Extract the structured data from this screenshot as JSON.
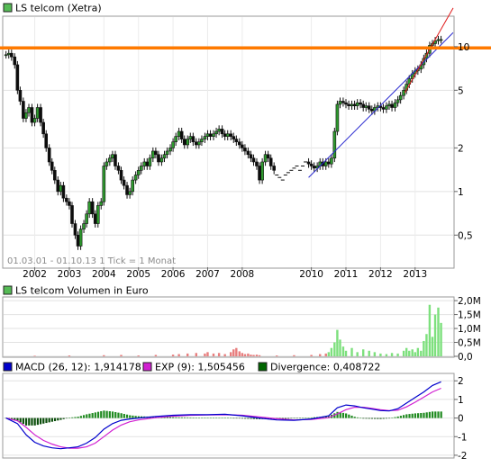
{
  "chart_data": [
    {
      "type": "line",
      "panel": "price",
      "legend": "LS telcom (Xetra)",
      "info_text": "01.03.01 - 01.10.13   1 Tick = 1 Monat",
      "y_scale": "log",
      "ylim": [
        0.3,
        16
      ],
      "y_ticks": [
        {
          "label": "0,5",
          "v": 0.5
        },
        {
          "label": "1",
          "v": 1
        },
        {
          "label": "2",
          "v": 2
        },
        {
          "label": "5",
          "v": 5
        },
        {
          "label": "10",
          "v": 10
        }
      ],
      "x_year_labels": [
        {
          "label": "2002",
          "t": 2002.0
        },
        {
          "label": "2003",
          "t": 2003.0
        },
        {
          "label": "2004",
          "t": 2004.0
        },
        {
          "label": "2005",
          "t": 2005.0
        },
        {
          "label": "2006",
          "t": 2006.0
        },
        {
          "label": "2007",
          "t": 2007.0
        },
        {
          "label": "2008",
          "t": 2008.0
        },
        {
          "label": "2010",
          "t": 2010.0
        },
        {
          "label": "2011",
          "t": 2011.0
        },
        {
          "label": "2012",
          "t": 2012.0
        },
        {
          "label": "2013",
          "t": 2013.0
        }
      ],
      "x_range": [
        2001.1,
        2014.1
      ],
      "price_points": [
        [
          2001.17,
          8.8
        ],
        [
          2001.25,
          9.0
        ],
        [
          2001.33,
          8.5
        ],
        [
          2001.42,
          7.5
        ],
        [
          2001.5,
          5.0
        ],
        [
          2001.58,
          4.2
        ],
        [
          2001.67,
          3.2
        ],
        [
          2001.75,
          3.5
        ],
        [
          2001.83,
          3.8
        ],
        [
          2001.92,
          3.0
        ],
        [
          2002.0,
          3.2
        ],
        [
          2002.08,
          3.8
        ],
        [
          2002.17,
          3.0
        ],
        [
          2002.25,
          2.5
        ],
        [
          2002.33,
          2.0
        ],
        [
          2002.42,
          1.6
        ],
        [
          2002.5,
          1.4
        ],
        [
          2002.58,
          1.2
        ],
        [
          2002.67,
          1.0
        ],
        [
          2002.75,
          1.1
        ],
        [
          2002.83,
          0.9
        ],
        [
          2002.92,
          0.85
        ],
        [
          2003.0,
          0.8
        ],
        [
          2003.08,
          0.6
        ],
        [
          2003.17,
          0.5
        ],
        [
          2003.25,
          0.42
        ],
        [
          2003.33,
          0.55
        ],
        [
          2003.42,
          0.6
        ],
        [
          2003.5,
          0.7
        ],
        [
          2003.58,
          0.85
        ],
        [
          2003.67,
          0.7
        ],
        [
          2003.75,
          0.6
        ],
        [
          2003.83,
          0.8
        ],
        [
          2003.92,
          0.85
        ],
        [
          2004.0,
          1.5
        ],
        [
          2004.08,
          1.6
        ],
        [
          2004.17,
          1.7
        ],
        [
          2004.25,
          1.8
        ],
        [
          2004.33,
          1.5
        ],
        [
          2004.42,
          1.4
        ],
        [
          2004.5,
          1.2
        ],
        [
          2004.58,
          1.1
        ],
        [
          2004.67,
          0.95
        ],
        [
          2004.75,
          1.0
        ],
        [
          2004.83,
          1.2
        ],
        [
          2004.92,
          1.3
        ],
        [
          2005.0,
          1.4
        ],
        [
          2005.08,
          1.5
        ],
        [
          2005.17,
          1.6
        ],
        [
          2005.25,
          1.5
        ],
        [
          2005.33,
          1.7
        ],
        [
          2005.42,
          1.9
        ],
        [
          2005.5,
          1.8
        ],
        [
          2005.58,
          1.6
        ],
        [
          2005.67,
          1.7
        ],
        [
          2005.75,
          1.8
        ],
        [
          2005.83,
          1.9
        ],
        [
          2005.92,
          2.0
        ],
        [
          2006.0,
          2.2
        ],
        [
          2006.08,
          2.4
        ],
        [
          2006.17,
          2.6
        ],
        [
          2006.25,
          2.3
        ],
        [
          2006.33,
          2.1
        ],
        [
          2006.42,
          2.3
        ],
        [
          2006.5,
          2.4
        ],
        [
          2006.58,
          2.2
        ],
        [
          2006.67,
          2.1
        ],
        [
          2006.75,
          2.2
        ],
        [
          2006.83,
          2.3
        ],
        [
          2006.92,
          2.4
        ],
        [
          2007.0,
          2.5
        ],
        [
          2007.08,
          2.4
        ],
        [
          2007.17,
          2.5
        ],
        [
          2007.25,
          2.6
        ],
        [
          2007.33,
          2.7
        ],
        [
          2007.42,
          2.5
        ],
        [
          2007.5,
          2.4
        ],
        [
          2007.58,
          2.5
        ],
        [
          2007.67,
          2.4
        ],
        [
          2007.75,
          2.3
        ],
        [
          2007.83,
          2.2
        ],
        [
          2007.92,
          2.1
        ],
        [
          2008.0,
          2.0
        ],
        [
          2008.08,
          1.9
        ],
        [
          2008.17,
          1.8
        ],
        [
          2008.25,
          1.7
        ],
        [
          2008.33,
          1.6
        ],
        [
          2008.42,
          1.5
        ],
        [
          2008.5,
          1.2
        ],
        [
          2008.58,
          1.6
        ],
        [
          2008.67,
          1.8
        ],
        [
          2008.75,
          1.7
        ],
        [
          2008.83,
          1.5
        ],
        [
          2008.92,
          1.4
        ],
        [
          2009.0,
          1.3
        ],
        [
          2009.08,
          1.25
        ],
        [
          2009.17,
          1.2
        ],
        [
          2009.25,
          1.3
        ],
        [
          2009.33,
          1.35
        ],
        [
          2009.42,
          1.4
        ],
        [
          2009.5,
          1.45
        ],
        [
          2009.58,
          1.5
        ],
        [
          2009.67,
          1.4
        ],
        [
          2009.75,
          1.5
        ],
        [
          2009.83,
          1.6
        ],
        [
          2009.92,
          1.55
        ],
        [
          2010.0,
          1.5
        ],
        [
          2010.08,
          1.45
        ],
        [
          2010.17,
          1.5
        ],
        [
          2010.25,
          1.6
        ],
        [
          2010.33,
          1.5
        ],
        [
          2010.42,
          1.6
        ],
        [
          2010.5,
          1.55
        ],
        [
          2010.58,
          1.7
        ],
        [
          2010.67,
          2.6
        ],
        [
          2010.75,
          4.0
        ],
        [
          2010.83,
          4.2
        ],
        [
          2010.92,
          4.1
        ],
        [
          2011.0,
          4.0
        ],
        [
          2011.08,
          3.9
        ],
        [
          2011.17,
          4.0
        ],
        [
          2011.25,
          3.9
        ],
        [
          2011.33,
          4.1
        ],
        [
          2011.42,
          4.0
        ],
        [
          2011.5,
          3.8
        ],
        [
          2011.58,
          3.9
        ],
        [
          2011.67,
          3.7
        ],
        [
          2011.75,
          3.6
        ],
        [
          2011.83,
          3.8
        ],
        [
          2011.92,
          3.9
        ],
        [
          2012.0,
          3.8
        ],
        [
          2012.08,
          3.7
        ],
        [
          2012.17,
          3.9
        ],
        [
          2012.25,
          4.0
        ],
        [
          2012.33,
          3.8
        ],
        [
          2012.42,
          4.1
        ],
        [
          2012.5,
          4.3
        ],
        [
          2012.58,
          4.6
        ],
        [
          2012.67,
          5.0
        ],
        [
          2012.75,
          5.5
        ],
        [
          2012.83,
          6.0
        ],
        [
          2012.92,
          6.5
        ],
        [
          2013.0,
          6.8
        ],
        [
          2013.08,
          7.0
        ],
        [
          2013.17,
          7.5
        ],
        [
          2013.25,
          8.3
        ],
        [
          2013.33,
          9.0
        ],
        [
          2013.42,
          10.2
        ],
        [
          2013.5,
          10.5
        ],
        [
          2013.58,
          11.0
        ],
        [
          2013.67,
          11.2
        ],
        [
          2013.75,
          11.2
        ]
      ],
      "horizontal_line": {
        "value": 9.8,
        "color": "#ff7a00"
      },
      "red_trend": [
        [
          2012.7,
          4.8
        ],
        [
          2014.1,
          18.5
        ]
      ],
      "blue_trend": [
        [
          2009.92,
          1.25
        ],
        [
          2014.1,
          12.5
        ]
      ],
      "colors": {
        "up": "#2e9a2e",
        "down": "#0d0d0d",
        "legend_box": "#55bb55"
      }
    },
    {
      "type": "bar",
      "panel": "volume",
      "legend": "LS telcom Volumen in Euro",
      "ylim": [
        0,
        2.1
      ],
      "y_ticks": [
        {
          "label": "0,0",
          "v": 0
        },
        {
          "label": "0,5M",
          "v": 0.5
        },
        {
          "label": "1,0M",
          "v": 1.0
        },
        {
          "label": "1,5M",
          "v": 1.5
        },
        {
          "label": "2,0M",
          "v": 2.0
        }
      ],
      "volume_points": [
        [
          2002.0,
          0.02
        ],
        [
          2003.0,
          0.03
        ],
        [
          2004.0,
          0.04
        ],
        [
          2004.5,
          0.05
        ],
        [
          2005.0,
          0.03
        ],
        [
          2005.5,
          0.05
        ],
        [
          2006.0,
          0.06
        ],
        [
          2006.17,
          0.08
        ],
        [
          2006.42,
          0.1
        ],
        [
          2006.67,
          0.12
        ],
        [
          2006.92,
          0.1
        ],
        [
          2007.0,
          0.15
        ],
        [
          2007.17,
          0.1
        ],
        [
          2007.33,
          0.12
        ],
        [
          2007.5,
          0.08
        ],
        [
          2007.67,
          0.15
        ],
        [
          2007.75,
          0.25
        ],
        [
          2007.83,
          0.3
        ],
        [
          2007.92,
          0.18
        ],
        [
          2008.0,
          0.12
        ],
        [
          2008.08,
          0.08
        ],
        [
          2008.17,
          0.1
        ],
        [
          2008.25,
          0.06
        ],
        [
          2008.33,
          0.05
        ],
        [
          2008.42,
          0.06
        ],
        [
          2008.5,
          0.04
        ],
        [
          2009.0,
          0.03
        ],
        [
          2009.5,
          0.04
        ],
        [
          2010.0,
          0.05
        ],
        [
          2010.25,
          0.08
        ],
        [
          2010.42,
          0.1
        ],
        [
          2010.5,
          0.15
        ],
        [
          2010.58,
          0.3
        ],
        [
          2010.67,
          0.5
        ],
        [
          2010.75,
          0.95
        ],
        [
          2010.83,
          0.6
        ],
        [
          2010.92,
          0.35
        ],
        [
          2011.0,
          0.2
        ],
        [
          2011.17,
          0.3
        ],
        [
          2011.33,
          0.15
        ],
        [
          2011.5,
          0.25
        ],
        [
          2011.67,
          0.2
        ],
        [
          2011.83,
          0.15
        ],
        [
          2012.0,
          0.1
        ],
        [
          2012.17,
          0.08
        ],
        [
          2012.33,
          0.12
        ],
        [
          2012.5,
          0.1
        ],
        [
          2012.67,
          0.2
        ],
        [
          2012.75,
          0.3
        ],
        [
          2012.83,
          0.2
        ],
        [
          2012.92,
          0.25
        ],
        [
          2013.0,
          0.15
        ],
        [
          2013.08,
          0.3
        ],
        [
          2013.17,
          0.2
        ],
        [
          2013.25,
          0.55
        ],
        [
          2013.33,
          0.8
        ],
        [
          2013.42,
          1.85
        ],
        [
          2013.5,
          0.7
        ],
        [
          2013.58,
          1.5
        ],
        [
          2013.67,
          1.75
        ],
        [
          2013.75,
          1.2
        ]
      ],
      "colors": {
        "up": "#7de07d",
        "down": "#e87e7e",
        "legend_box": "#55bb55"
      }
    },
    {
      "type": "line",
      "panel": "macd",
      "legend": [
        {
          "label": "MACD (26, 12): 1,914178",
          "color": "#0000cc"
        },
        {
          "label": "EXP (9): 1,505456",
          "color": "#d11fd1"
        },
        {
          "label": "Divergence: 0,408722",
          "color": "#006600"
        }
      ],
      "ylim": [
        -2.1,
        2.35
      ],
      "y_ticks": [
        {
          "label": "2",
          "v": 2
        },
        {
          "label": "1",
          "v": 1
        },
        {
          "label": "0",
          "v": 0
        },
        {
          "label": "-1",
          "v": -1
        },
        {
          "label": "-2",
          "v": -2
        }
      ],
      "macd": [
        [
          2001.17,
          0.0
        ],
        [
          2001.5,
          -0.3
        ],
        [
          2001.75,
          -0.9
        ],
        [
          2002.0,
          -1.3
        ],
        [
          2002.25,
          -1.5
        ],
        [
          2002.5,
          -1.6
        ],
        [
          2002.75,
          -1.65
        ],
        [
          2003.0,
          -1.6
        ],
        [
          2003.25,
          -1.55
        ],
        [
          2003.5,
          -1.35
        ],
        [
          2003.75,
          -1.05
        ],
        [
          2004.0,
          -0.6
        ],
        [
          2004.25,
          -0.3
        ],
        [
          2004.5,
          -0.12
        ],
        [
          2004.75,
          -0.05
        ],
        [
          2005.0,
          0.0
        ],
        [
          2005.5,
          0.08
        ],
        [
          2006.0,
          0.15
        ],
        [
          2006.5,
          0.18
        ],
        [
          2007.0,
          0.18
        ],
        [
          2007.5,
          0.2
        ],
        [
          2008.0,
          0.12
        ],
        [
          2008.5,
          0.0
        ],
        [
          2009.0,
          -0.1
        ],
        [
          2009.5,
          -0.12
        ],
        [
          2010.0,
          -0.05
        ],
        [
          2010.5,
          0.12
        ],
        [
          2010.75,
          0.55
        ],
        [
          2011.0,
          0.7
        ],
        [
          2011.25,
          0.65
        ],
        [
          2011.5,
          0.55
        ],
        [
          2011.75,
          0.48
        ],
        [
          2012.0,
          0.4
        ],
        [
          2012.25,
          0.38
        ],
        [
          2012.5,
          0.5
        ],
        [
          2012.75,
          0.8
        ],
        [
          2013.0,
          1.1
        ],
        [
          2013.25,
          1.4
        ],
        [
          2013.5,
          1.75
        ],
        [
          2013.75,
          1.95
        ]
      ],
      "signal": [
        [
          2001.17,
          0.0
        ],
        [
          2001.5,
          -0.15
        ],
        [
          2001.75,
          -0.5
        ],
        [
          2002.0,
          -0.9
        ],
        [
          2002.25,
          -1.2
        ],
        [
          2002.5,
          -1.4
        ],
        [
          2002.75,
          -1.55
        ],
        [
          2003.0,
          -1.62
        ],
        [
          2003.25,
          -1.62
        ],
        [
          2003.5,
          -1.55
        ],
        [
          2003.75,
          -1.35
        ],
        [
          2004.0,
          -1.0
        ],
        [
          2004.25,
          -0.65
        ],
        [
          2004.5,
          -0.38
        ],
        [
          2004.75,
          -0.2
        ],
        [
          2005.0,
          -0.1
        ],
        [
          2005.5,
          0.02
        ],
        [
          2006.0,
          0.1
        ],
        [
          2006.5,
          0.15
        ],
        [
          2007.0,
          0.17
        ],
        [
          2007.5,
          0.18
        ],
        [
          2008.0,
          0.15
        ],
        [
          2008.5,
          0.06
        ],
        [
          2009.0,
          -0.04
        ],
        [
          2009.5,
          -0.1
        ],
        [
          2010.0,
          -0.08
        ],
        [
          2010.5,
          0.02
        ],
        [
          2010.75,
          0.22
        ],
        [
          2011.0,
          0.45
        ],
        [
          2011.25,
          0.58
        ],
        [
          2011.5,
          0.58
        ],
        [
          2011.75,
          0.52
        ],
        [
          2012.0,
          0.45
        ],
        [
          2012.25,
          0.4
        ],
        [
          2012.5,
          0.42
        ],
        [
          2012.75,
          0.6
        ],
        [
          2013.0,
          0.85
        ],
        [
          2013.25,
          1.12
        ],
        [
          2013.5,
          1.4
        ],
        [
          2013.75,
          1.6
        ]
      ],
      "colors": {
        "macd": "#0000cc",
        "signal": "#d11fd1",
        "hist_pos": "#1f8a1f",
        "hist_neg": "#0a4d0a"
      }
    }
  ]
}
